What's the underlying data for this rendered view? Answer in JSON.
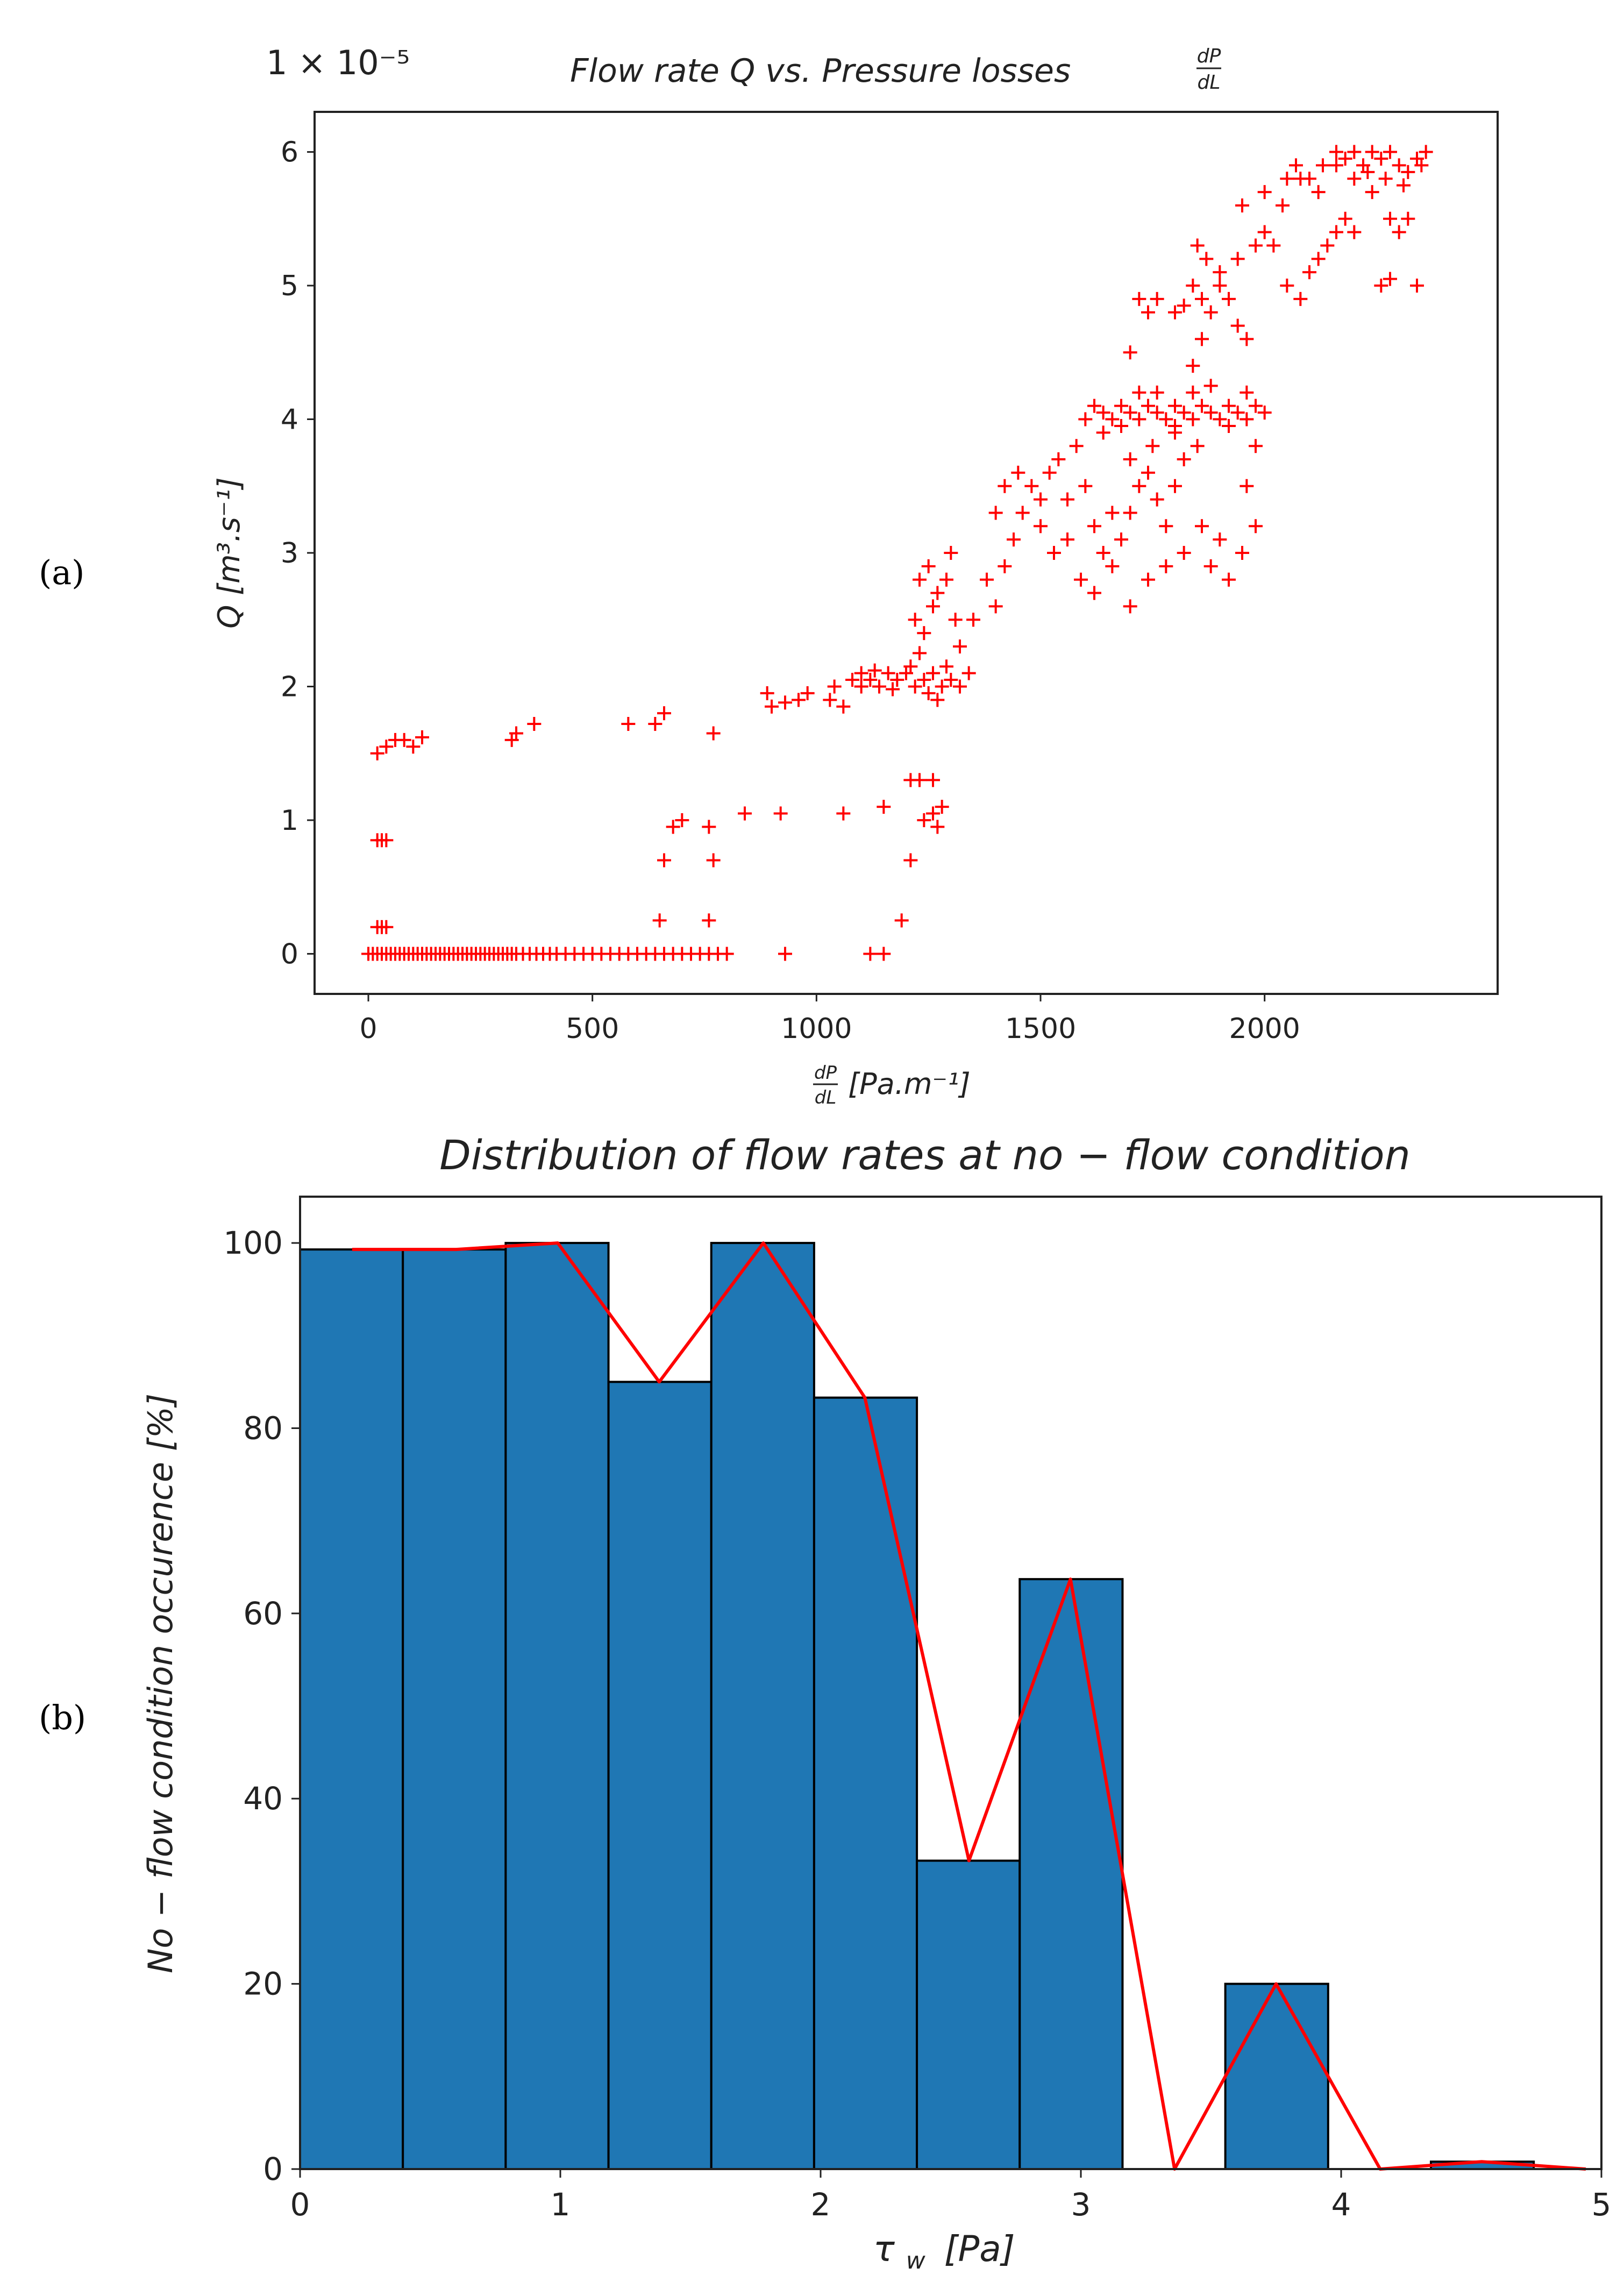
{
  "panel_labels": {
    "a": "(a)",
    "b": "(b)"
  },
  "chart_data": [
    {
      "type": "scatter",
      "panel": "a",
      "title_main": "Flow rate Q vs. Pressure losses",
      "title_frac_num": "dP",
      "title_frac_den": "dL",
      "offset_text": "1 × 10⁻⁵",
      "ylabel": "Q [m³.s⁻¹]",
      "xlabel_frac_num": "dP",
      "xlabel_frac_den": "dL",
      "xlabel_units": "[Pa.m⁻¹]",
      "marker": "+",
      "color": "#ff0000",
      "xlim": [
        -120,
        2520
      ],
      "ylim": [
        -0.3,
        6.3
      ],
      "xticks": [
        0,
        500,
        1000,
        1500,
        2000
      ],
      "yticks": [
        0,
        1,
        2,
        3,
        4,
        5,
        6
      ],
      "points": [
        [
          0,
          0
        ],
        [
          10,
          0
        ],
        [
          20,
          0
        ],
        [
          30,
          0
        ],
        [
          40,
          0
        ],
        [
          50,
          0
        ],
        [
          60,
          0
        ],
        [
          70,
          0
        ],
        [
          80,
          0
        ],
        [
          90,
          0
        ],
        [
          100,
          0
        ],
        [
          110,
          0
        ],
        [
          120,
          0
        ],
        [
          130,
          0
        ],
        [
          140,
          0
        ],
        [
          150,
          0
        ],
        [
          160,
          0
        ],
        [
          170,
          0
        ],
        [
          180,
          0
        ],
        [
          190,
          0
        ],
        [
          200,
          0
        ],
        [
          210,
          0
        ],
        [
          220,
          0
        ],
        [
          230,
          0
        ],
        [
          240,
          0
        ],
        [
          250,
          0
        ],
        [
          260,
          0
        ],
        [
          270,
          0
        ],
        [
          280,
          0
        ],
        [
          290,
          0
        ],
        [
          300,
          0
        ],
        [
          310,
          0
        ],
        [
          320,
          0
        ],
        [
          330,
          0
        ],
        [
          345,
          0
        ],
        [
          360,
          0
        ],
        [
          375,
          0
        ],
        [
          390,
          0
        ],
        [
          405,
          0
        ],
        [
          420,
          0
        ],
        [
          440,
          0
        ],
        [
          460,
          0
        ],
        [
          480,
          0
        ],
        [
          500,
          0
        ],
        [
          520,
          0
        ],
        [
          540,
          0
        ],
        [
          560,
          0
        ],
        [
          580,
          0
        ],
        [
          600,
          0
        ],
        [
          620,
          0
        ],
        [
          640,
          0
        ],
        [
          660,
          0
        ],
        [
          680,
          0
        ],
        [
          700,
          0
        ],
        [
          720,
          0
        ],
        [
          740,
          0
        ],
        [
          760,
          0
        ],
        [
          780,
          0
        ],
        [
          800,
          0
        ],
        [
          930,
          0
        ],
        [
          1120,
          0
        ],
        [
          1150,
          0
        ],
        [
          20,
          0.2
        ],
        [
          30,
          0.2
        ],
        [
          40,
          0.2
        ],
        [
          20,
          0.85
        ],
        [
          30,
          0.85
        ],
        [
          40,
          0.85
        ],
        [
          20,
          1.5
        ],
        [
          40,
          1.55
        ],
        [
          60,
          1.6
        ],
        [
          80,
          1.6
        ],
        [
          100,
          1.55
        ],
        [
          120,
          1.62
        ],
        [
          320,
          1.6
        ],
        [
          330,
          1.65
        ],
        [
          370,
          1.72
        ],
        [
          580,
          1.72
        ],
        [
          640,
          1.72
        ],
        [
          660,
          1.8
        ],
        [
          770,
          1.65
        ],
        [
          650,
          0.25
        ],
        [
          760,
          0.25
        ],
        [
          660,
          0.7
        ],
        [
          770,
          0.7
        ],
        [
          680,
          0.95
        ],
        [
          700,
          1.0
        ],
        [
          760,
          0.95
        ],
        [
          840,
          1.05
        ],
        [
          920,
          1.05
        ],
        [
          1060,
          1.05
        ],
        [
          1150,
          1.1
        ],
        [
          1210,
          1.3
        ],
        [
          1230,
          1.3
        ],
        [
          1260,
          1.3
        ],
        [
          1240,
          1.0
        ],
        [
          1260,
          1.05
        ],
        [
          1280,
          1.1
        ],
        [
          1270,
          0.95
        ],
        [
          1210,
          0.7
        ],
        [
          1190,
          0.25
        ],
        [
          890,
          1.95
        ],
        [
          900,
          1.85
        ],
        [
          930,
          1.88
        ],
        [
          960,
          1.9
        ],
        [
          980,
          1.95
        ],
        [
          1030,
          1.9
        ],
        [
          1060,
          1.85
        ],
        [
          1040,
          2.0
        ],
        [
          1080,
          2.05
        ],
        [
          1100,
          2.1
        ],
        [
          1120,
          2.05
        ],
        [
          1140,
          2.0
        ],
        [
          1160,
          2.1
        ],
        [
          1180,
          2.05
        ],
        [
          1200,
          2.1
        ],
        [
          1220,
          2.0
        ],
        [
          1240,
          2.05
        ],
        [
          1260,
          2.1
        ],
        [
          1280,
          2.0
        ],
        [
          1300,
          2.05
        ],
        [
          1320,
          2.0
        ],
        [
          1340,
          2.1
        ],
        [
          1100,
          2.0
        ],
        [
          1130,
          2.12
        ],
        [
          1170,
          1.98
        ],
        [
          1210,
          2.15
        ],
        [
          1250,
          1.95
        ],
        [
          1290,
          2.15
        ],
        [
          1230,
          2.25
        ],
        [
          1270,
          1.9
        ],
        [
          1220,
          2.5
        ],
        [
          1240,
          2.4
        ],
        [
          1260,
          2.6
        ],
        [
          1230,
          2.8
        ],
        [
          1250,
          2.9
        ],
        [
          1270,
          2.7
        ],
        [
          1290,
          2.8
        ],
        [
          1300,
          3.0
        ],
        [
          1310,
          2.5
        ],
        [
          1320,
          2.3
        ],
        [
          1350,
          2.5
        ],
        [
          1380,
          2.8
        ],
        [
          1400,
          2.6
        ],
        [
          1420,
          2.9
        ],
        [
          1440,
          3.1
        ],
        [
          1460,
          3.3
        ],
        [
          1480,
          3.5
        ],
        [
          1500,
          3.4
        ],
        [
          1520,
          3.6
        ],
        [
          1540,
          3.7
        ],
        [
          1560,
          3.4
        ],
        [
          1580,
          3.8
        ],
        [
          1600,
          3.5
        ],
        [
          1620,
          3.2
        ],
        [
          1640,
          3.0
        ],
        [
          1660,
          2.9
        ],
        [
          1680,
          3.1
        ],
        [
          1700,
          3.3
        ],
        [
          1720,
          3.5
        ],
        [
          1740,
          3.6
        ],
        [
          1760,
          3.4
        ],
        [
          1780,
          3.2
        ],
        [
          1800,
          3.5
        ],
        [
          1820,
          3.7
        ],
        [
          1700,
          2.6
        ],
        [
          1740,
          2.8
        ],
        [
          1780,
          2.9
        ],
        [
          1820,
          3.0
        ],
        [
          1860,
          3.2
        ],
        [
          1880,
          2.9
        ],
        [
          1900,
          3.1
        ],
        [
          1920,
          2.8
        ],
        [
          1950,
          3.0
        ],
        [
          1980,
          3.2
        ],
        [
          1960,
          3.5
        ],
        [
          1980,
          3.8
        ],
        [
          1400,
          3.3
        ],
        [
          1420,
          3.5
        ],
        [
          1450,
          3.6
        ],
        [
          1500,
          3.2
        ],
        [
          1530,
          3.0
        ],
        [
          1560,
          3.1
        ],
        [
          1590,
          2.8
        ],
        [
          1620,
          2.7
        ],
        [
          1660,
          3.3
        ],
        [
          1700,
          3.7
        ],
        [
          1750,
          3.8
        ],
        [
          1800,
          3.9
        ],
        [
          1850,
          3.8
        ],
        [
          1600,
          4.0
        ],
        [
          1620,
          4.1
        ],
        [
          1640,
          4.05
        ],
        [
          1660,
          4.0
        ],
        [
          1680,
          4.1
        ],
        [
          1700,
          4.05
        ],
        [
          1720,
          4.0
        ],
        [
          1740,
          4.1
        ],
        [
          1760,
          4.05
        ],
        [
          1780,
          4.0
        ],
        [
          1800,
          4.1
        ],
        [
          1820,
          4.05
        ],
        [
          1840,
          4.0
        ],
        [
          1860,
          4.1
        ],
        [
          1880,
          4.05
        ],
        [
          1900,
          4.0
        ],
        [
          1920,
          4.1
        ],
        [
          1940,
          4.05
        ],
        [
          1960,
          4.0
        ],
        [
          1980,
          4.1
        ],
        [
          2000,
          4.05
        ],
        [
          1640,
          3.9
        ],
        [
          1680,
          3.95
        ],
        [
          1720,
          4.2
        ],
        [
          1760,
          4.2
        ],
        [
          1800,
          3.95
        ],
        [
          1840,
          4.2
        ],
        [
          1880,
          4.25
        ],
        [
          1920,
          3.95
        ],
        [
          1960,
          4.2
        ],
        [
          1700,
          4.5
        ],
        [
          1840,
          4.4
        ],
        [
          1860,
          4.6
        ],
        [
          1720,
          4.9
        ],
        [
          1740,
          4.8
        ],
        [
          1760,
          4.9
        ],
        [
          1800,
          4.8
        ],
        [
          1820,
          4.85
        ],
        [
          1840,
          5.0
        ],
        [
          1860,
          4.9
        ],
        [
          1880,
          4.8
        ],
        [
          1900,
          5.0
        ],
        [
          1920,
          4.9
        ],
        [
          1940,
          4.7
        ],
        [
          1960,
          4.6
        ],
        [
          1850,
          5.3
        ],
        [
          1870,
          5.2
        ],
        [
          1900,
          5.1
        ],
        [
          1940,
          5.2
        ],
        [
          1980,
          5.3
        ],
        [
          2000,
          5.4
        ],
        [
          2020,
          5.3
        ],
        [
          2050,
          5.0
        ],
        [
          2080,
          4.9
        ],
        [
          2100,
          5.1
        ],
        [
          2120,
          5.2
        ],
        [
          2140,
          5.3
        ],
        [
          2160,
          5.4
        ],
        [
          2180,
          5.5
        ],
        [
          2200,
          5.4
        ],
        [
          1950,
          5.6
        ],
        [
          2000,
          5.7
        ],
        [
          2040,
          5.6
        ],
        [
          2080,
          5.8
        ],
        [
          2120,
          5.7
        ],
        [
          2160,
          5.9
        ],
        [
          2200,
          5.8
        ],
        [
          2240,
          5.7
        ],
        [
          2280,
          5.5
        ],
        [
          2300,
          5.4
        ],
        [
          2320,
          5.5
        ],
        [
          2260,
          5.0
        ],
        [
          2280,
          5.05
        ],
        [
          2340,
          5.0
        ],
        [
          2100,
          5.8
        ],
        [
          2130,
          5.9
        ],
        [
          2160,
          6.0
        ],
        [
          2180,
          5.95
        ],
        [
          2200,
          6.0
        ],
        [
          2220,
          5.9
        ],
        [
          2240,
          6.0
        ],
        [
          2260,
          5.95
        ],
        [
          2280,
          6.0
        ],
        [
          2300,
          5.9
        ],
        [
          2320,
          5.85
        ],
        [
          2340,
          5.95
        ],
        [
          2360,
          6.0
        ],
        [
          2050,
          5.8
        ],
        [
          2070,
          5.9
        ],
        [
          2230,
          5.85
        ],
        [
          2270,
          5.8
        ],
        [
          2310,
          5.75
        ],
        [
          2350,
          5.9
        ]
      ]
    },
    {
      "type": "bar",
      "panel": "b",
      "title": "Distribution of flow rates at no − flow condition",
      "ylabel": "No − flow condition occurence [%]",
      "xlabel_symbol": "τ",
      "xlabel_sub": "w",
      "xlabel_units": "[Pa]",
      "xlim": [
        0,
        5
      ],
      "ylim": [
        0,
        105
      ],
      "xticks": [
        0,
        1,
        2,
        3,
        4,
        5
      ],
      "yticks": [
        0,
        20,
        40,
        60,
        80,
        100
      ],
      "bar_color": "#1f77b4",
      "line_color": "#ff0000",
      "bin_edges": [
        0,
        0.395,
        0.79,
        1.185,
        1.58,
        1.975,
        2.37,
        2.765,
        3.16,
        3.555,
        3.95,
        4.345,
        4.74,
        5.135
      ],
      "values": [
        99.3,
        99.3,
        100,
        85,
        100,
        83.3,
        33.3,
        63.7,
        0,
        20,
        0,
        0.8,
        0
      ],
      "line_points": [
        [
          0.2,
          99.3
        ],
        [
          0.6,
          99.3
        ],
        [
          0.99,
          100
        ],
        [
          1.38,
          85
        ],
        [
          1.78,
          100
        ],
        [
          2.17,
          83.3
        ],
        [
          2.57,
          33.3
        ],
        [
          2.96,
          63.7
        ],
        [
          3.36,
          0
        ],
        [
          3.75,
          20
        ],
        [
          4.15,
          0
        ],
        [
          4.54,
          0.8
        ],
        [
          4.94,
          0
        ]
      ]
    }
  ]
}
